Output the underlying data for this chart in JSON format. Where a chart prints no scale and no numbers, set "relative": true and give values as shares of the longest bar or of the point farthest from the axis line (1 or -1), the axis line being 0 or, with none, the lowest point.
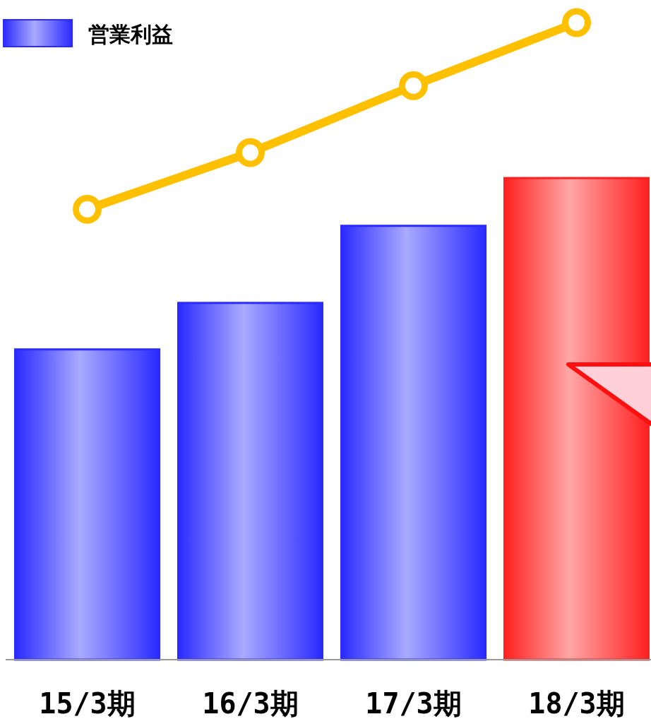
{
  "chart_data": {
    "type": "bar",
    "relative": true,
    "categories": [
      "15/3期",
      "16/3期",
      "17/3期",
      "18/3期"
    ],
    "series": [
      {
        "name": "営業利益",
        "colors": [
          "#2a2aff",
          "#2a2aff",
          "#2a2aff",
          "#ff2020"
        ],
        "color": "#2a2aff",
        "values": [
          0.487,
          0.56,
          0.681,
          0.756
        ]
      },
      {
        "type": "line",
        "color": "#ffc000",
        "marker": "circle",
        "values": [
          0.707,
          0.796,
          0.901,
          1
        ]
      }
    ],
    "legend": "top left"
  }
}
